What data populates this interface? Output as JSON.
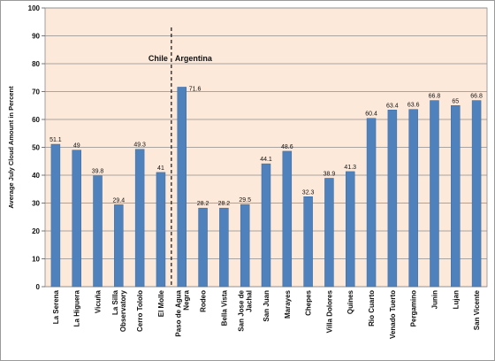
{
  "chart_data": {
    "type": "bar",
    "title": "",
    "xlabel": "",
    "ylabel": "Average July Cloud Amount in Percent",
    "ylim": [
      0,
      100
    ],
    "yticks": [
      0,
      10,
      20,
      30,
      40,
      50,
      60,
      70,
      80,
      90,
      100
    ],
    "grid": true,
    "categories": [
      "La Serena",
      "La Higuera",
      "Vicuña",
      "La Silla Observatory",
      "Cerro Tololo",
      "El Molle",
      "Paso de Agua Negra",
      "Rodeo",
      "Bella Vista",
      "San Jose de Jachal",
      "San Juan",
      "Marayes",
      "Chepes",
      "Villa Dolores",
      "Quines",
      "Rio Cuarto",
      "Venado Tuerto",
      "Pergamino",
      "Junin",
      "Lujan",
      "San Vicente"
    ],
    "values": [
      51.1,
      49,
      39.8,
      29.4,
      49.3,
      41,
      71.6,
      28.2,
      28.2,
      29.5,
      44.1,
      48.6,
      32.3,
      38.9,
      41.3,
      60.4,
      63.4,
      63.6,
      66.8,
      65,
      66.8
    ],
    "value_labels": [
      "51.1",
      "49",
      "39.8",
      "29.4",
      "49.3",
      "41",
      "71.6",
      "28.2",
      "28.2",
      "29.5",
      "44.1",
      "48.6",
      "32.3",
      "38.9",
      "41.3",
      "60.4",
      "63.4",
      "63.6",
      "66.8",
      "65",
      "66.8"
    ],
    "category_lines": [
      [
        "La Serena"
      ],
      [
        "La Higuera"
      ],
      [
        "Vicuña"
      ],
      [
        "La Silla",
        "Observatory"
      ],
      [
        "Cerro Tololo"
      ],
      [
        "El Molle"
      ],
      [
        "Paso de Agua",
        "Negra"
      ],
      [
        "Rodeo"
      ],
      [
        "Bella Vista"
      ],
      [
        "San Jose de",
        "Jachal"
      ],
      [
        "San Juan"
      ],
      [
        "Marayes"
      ],
      [
        "Chepes"
      ],
      [
        "Villa Dolores"
      ],
      [
        "Quines"
      ],
      [
        "Rio Cuarto"
      ],
      [
        "Venado Tuerto"
      ],
      [
        "Pergamino"
      ],
      [
        "Junin"
      ],
      [
        "Lujan"
      ],
      [
        "San Vicente"
      ]
    ],
    "annotations": {
      "left_region": "Chile",
      "right_region": "Argentina",
      "divider_between": [
        "El Molle",
        "Paso de Agua Negra"
      ]
    },
    "colors": {
      "bar": "#4f81bd",
      "bar_edge": "#3a6aa0",
      "plot_bg": "#fde9d9",
      "grid": "#8c8c8c"
    }
  }
}
